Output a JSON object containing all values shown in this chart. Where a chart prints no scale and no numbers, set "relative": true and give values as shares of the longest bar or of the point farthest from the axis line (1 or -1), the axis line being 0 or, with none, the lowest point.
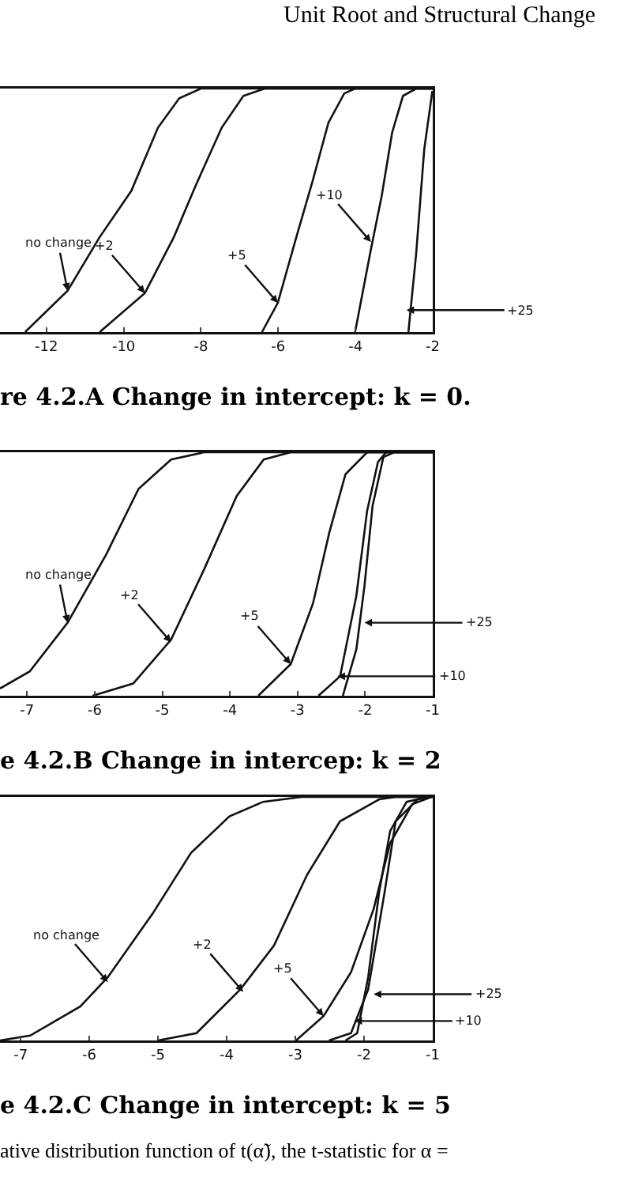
{
  "chart_data": [
    {
      "type": "line",
      "title": "re 4.2.A Change in intercept: k = 0.",
      "relative": true,
      "xlim": [
        -13.2,
        -2
      ],
      "xticks": [
        -12,
        -10,
        -8,
        -6,
        -4,
        -2
      ],
      "annotations": [
        "Unit Root and Structural Change",
        {
          "text": "no change",
          "x": -11.45,
          "y": 0.17
        },
        {
          "text": "+2",
          "x": -9.45,
          "y": 0.16
        },
        {
          "text": "+5",
          "x": -6.01,
          "y": 0.12
        },
        {
          "text": "+10",
          "x": -3.6,
          "y": 0.37
        },
        {
          "text": "+25",
          "x": -2.68,
          "y": 0.09
        }
      ],
      "series": [
        {
          "color": "#111111",
          "x": [
            -12.55,
            -11.45,
            -10.62,
            -9.8,
            -9.11,
            -8.56,
            -8.0,
            -2.0
          ],
          "values": [
            0,
            0.17,
            0.39,
            0.58,
            0.84,
            0.96,
            1,
            1
          ]
        },
        {
          "color": "#111111",
          "x": [
            -10.62,
            -9.45,
            -8.7,
            -8.14,
            -7.46,
            -6.9,
            -6.35,
            -2.0
          ],
          "values": [
            0,
            0.16,
            0.39,
            0.6,
            0.84,
            0.97,
            1,
            1
          ]
        },
        {
          "color": "#111111",
          "x": [
            -6.42,
            -6.01,
            -5.53,
            -5.11,
            -4.7,
            -4.29,
            -4.01,
            -2.0
          ],
          "values": [
            0,
            0.12,
            0.39,
            0.62,
            0.86,
            0.98,
            1,
            1
          ]
        },
        {
          "color": "#111111",
          "x": [
            -4.01,
            -3.6,
            -3.32,
            -3.05,
            -2.77,
            -2.43,
            -2.0
          ],
          "values": [
            0,
            0.34,
            0.56,
            0.82,
            0.97,
            1,
            1
          ]
        },
        {
          "color": "#111111",
          "x": [
            -2.63,
            -2.43,
            -2.22,
            -2.01
          ],
          "values": [
            0,
            0.32,
            0.75,
            0.99
          ]
        }
      ]
    },
    {
      "type": "line",
      "title": "e 4.2.B Change in intercep: k = 2",
      "relative": true,
      "xlim": [
        -7.4,
        -1
      ],
      "xticks": [
        -7,
        -6,
        -5,
        -4,
        -3,
        -2,
        -1
      ],
      "annotations": [
        {
          "text": "no change",
          "x": -6.4,
          "y": 0.3
        },
        {
          "text": "+2",
          "x": -4.87,
          "y": 0.22
        },
        {
          "text": "+5",
          "x": -3.1,
          "y": 0.13
        },
        {
          "text": "+25",
          "x": -2.01,
          "y": 0.3
        },
        {
          "text": "+10",
          "x": -2.41,
          "y": 0.08
        }
      ],
      "series": [
        {
          "color": "#111111",
          "x": [
            -7.4,
            -6.96,
            -6.4,
            -5.83,
            -5.35,
            -4.87,
            -4.38,
            -1.0
          ],
          "values": [
            0.03,
            0.1,
            0.3,
            0.58,
            0.85,
            0.97,
            1,
            1
          ]
        },
        {
          "color": "#111111",
          "x": [
            -6.03,
            -5.43,
            -4.87,
            -4.38,
            -3.9,
            -3.5,
            -3.1,
            -1.0
          ],
          "values": [
            0,
            0.05,
            0.23,
            0.52,
            0.82,
            0.97,
            1,
            1
          ]
        },
        {
          "color": "#111111",
          "x": [
            -3.58,
            -3.1,
            -2.77,
            -2.53,
            -2.29,
            -1.97,
            -1.0
          ],
          "values": [
            0,
            0.13,
            0.38,
            0.67,
            0.91,
            1,
            1
          ]
        },
        {
          "color": "#111111",
          "x": [
            -2.69,
            -2.37,
            -2.13,
            -1.97,
            -1.81,
            -1.69,
            -1.0
          ],
          "values": [
            0,
            0.08,
            0.41,
            0.76,
            0.96,
            1,
            1
          ]
        },
        {
          "color": "#111111",
          "x": [
            -2.33,
            -2.13,
            -2.01,
            -1.89,
            -1.73,
            -1.57,
            -1.0
          ],
          "values": [
            0,
            0.19,
            0.45,
            0.78,
            0.98,
            1,
            1
          ]
        }
      ]
    },
    {
      "type": "line",
      "title": "e 4.2.C Change in intercept: k = 5",
      "relative": true,
      "xlim": [
        -7.3,
        -1
      ],
      "xticks": [
        -7,
        -6,
        -5,
        -4,
        -3,
        -2,
        -1
      ],
      "annotations": [
        "ative distribution function of t(α̃), the t-statistic for α =",
        {
          "text": "no change",
          "x": -5.73,
          "y": 0.24
        },
        {
          "text": "+2",
          "x": -3.76,
          "y": 0.2
        },
        {
          "text": "+5",
          "x": -2.59,
          "y": 0.1
        },
        {
          "text": "+25",
          "x": -1.86,
          "y": 0.19
        },
        {
          "text": "+10",
          "x": -2.14,
          "y": 0.08
        }
      ],
      "series": [
        {
          "color": "#111111",
          "x": [
            -7.3,
            -6.86,
            -6.13,
            -5.73,
            -5.08,
            -4.52,
            -3.96,
            -3.47,
            -2.91,
            -1.0
          ],
          "values": [
            0,
            0.02,
            0.14,
            0.26,
            0.52,
            0.77,
            0.92,
            0.98,
            1,
            1
          ]
        },
        {
          "color": "#111111",
          "x": [
            -5.0,
            -4.44,
            -3.8,
            -3.31,
            -2.83,
            -2.35,
            -1.78,
            -1.54,
            -1.0
          ],
          "values": [
            0,
            0.03,
            0.21,
            0.39,
            0.68,
            0.9,
            0.99,
            1,
            1
          ]
        },
        {
          "color": "#111111",
          "x": [
            -2.99,
            -2.59,
            -2.19,
            -1.86,
            -1.62,
            -1.3,
            -1.02
          ],
          "values": [
            0,
            0.1,
            0.28,
            0.54,
            0.81,
            0.97,
            1
          ]
        },
        {
          "color": "#111111",
          "x": [
            -2.51,
            -2.19,
            -1.94,
            -1.7,
            -1.54,
            -1.22,
            -1.02
          ],
          "values": [
            0,
            0.03,
            0.21,
            0.61,
            0.9,
            0.99,
            1
          ]
        },
        {
          "color": "#111111",
          "x": [
            -2.27,
            -2.1,
            -1.94,
            -1.78,
            -1.62,
            -1.38,
            -1.06
          ],
          "values": [
            0,
            0.03,
            0.26,
            0.61,
            0.86,
            0.98,
            1
          ]
        }
      ]
    }
  ]
}
